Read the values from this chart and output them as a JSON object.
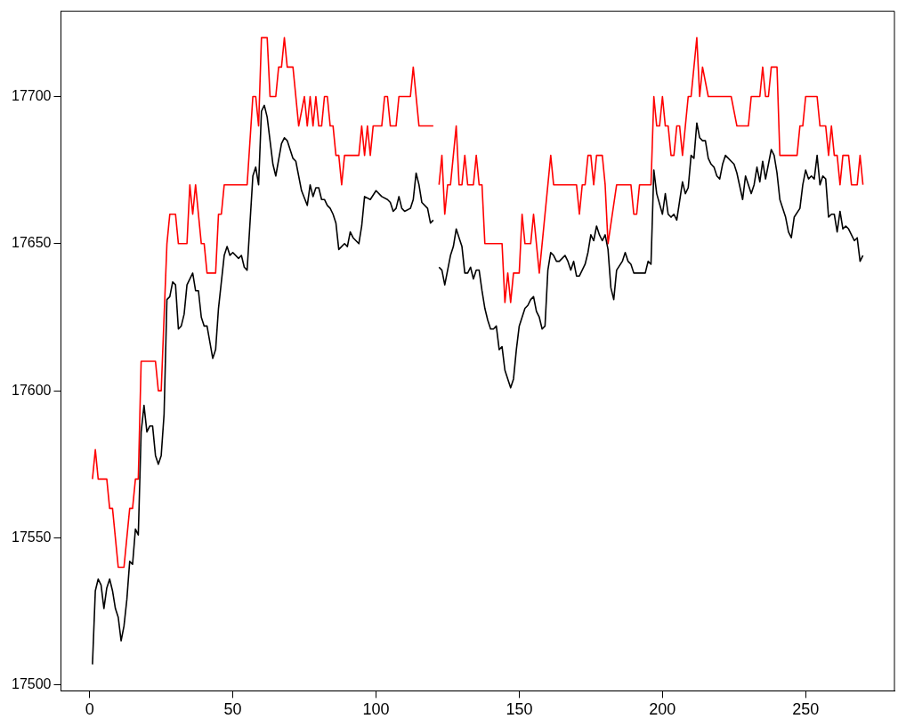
{
  "chart_data": {
    "type": "line",
    "marker": "none",
    "line_style": "solid",
    "xlim": [
      -10,
      281
    ],
    "xticks": [
      0,
      50,
      100,
      150,
      200,
      250
    ],
    "ylim": [
      17498,
      17729
    ],
    "yticks": [
      17500,
      17550,
      17600,
      17650,
      17700
    ],
    "series": [
      {
        "color": "#000000",
        "x": [
          1,
          2,
          3,
          4,
          5,
          6,
          7,
          8,
          9,
          10,
          11,
          12,
          13,
          14,
          15,
          16,
          17,
          18,
          19,
          20,
          21,
          22,
          23,
          24,
          25,
          26,
          27,
          28,
          29,
          30,
          31,
          32,
          33,
          34,
          36,
          37,
          38,
          39,
          40,
          41,
          43,
          44,
          45,
          47,
          48,
          49,
          50,
          52,
          53,
          54,
          55,
          57,
          58,
          59,
          60,
          61,
          62,
          64,
          65,
          67,
          68,
          69,
          71,
          72,
          74,
          76,
          77,
          78,
          79,
          80,
          81,
          82,
          83,
          84,
          85,
          86,
          87,
          89,
          90,
          91,
          92,
          93,
          94,
          95,
          96,
          98,
          100,
          102,
          104,
          105,
          106,
          107,
          108,
          109,
          110,
          112,
          113,
          114,
          115,
          116,
          118,
          119,
          120,
          121,
          122,
          123,
          124,
          125,
          126,
          127,
          128,
          129,
          130,
          131,
          132,
          133,
          134,
          135,
          136,
          137,
          138,
          139,
          140,
          141,
          142,
          143,
          144,
          145,
          146,
          147,
          148,
          149,
          150,
          151,
          152,
          153,
          154,
          155,
          156,
          157,
          158,
          159,
          160,
          161,
          162,
          163,
          164,
          166,
          167,
          168,
          169,
          170,
          171,
          173,
          174,
          175,
          176,
          177,
          178,
          179,
          180,
          181,
          182,
          183,
          184,
          186,
          187,
          188,
          189,
          190,
          192,
          194,
          195,
          196,
          197,
          198,
          200,
          201,
          202,
          203,
          204,
          205,
          207,
          208,
          209,
          210,
          211,
          212,
          213,
          214,
          215,
          216,
          217,
          218,
          219,
          220,
          221,
          222,
          223,
          224,
          225,
          226,
          228,
          229,
          231,
          232,
          233,
          234,
          235,
          236,
          238,
          239,
          240,
          241,
          243,
          244,
          245,
          246,
          248,
          249,
          250,
          251,
          252,
          253,
          254,
          255,
          256,
          257,
          258,
          259,
          260,
          261,
          262,
          263,
          264,
          265,
          267,
          268,
          269,
          270
        ],
        "values": [
          17507,
          17532,
          17536,
          17534,
          17526,
          17533,
          17536,
          17532,
          17526,
          17523,
          17515,
          17520,
          17529,
          17542,
          17541,
          17553,
          17551,
          17586,
          17595,
          17586,
          17588,
          17588,
          17578,
          17575,
          17578,
          17592,
          17631,
          17632,
          17637,
          17636,
          17621,
          17622,
          17626,
          17636,
          17640,
          17634,
          17634,
          17625,
          17622,
          17622,
          17611,
          17614,
          17628,
          17646,
          17649,
          17646,
          17647,
          17645,
          17646,
          17642,
          17641,
          17673,
          17676,
          17670,
          17695,
          17697,
          17693,
          17677,
          17673,
          17684,
          17686,
          17685,
          17679,
          17678,
          17668,
          17663,
          17670,
          17666,
          17669,
          17669,
          17665,
          17665,
          17663,
          17662,
          17660,
          17657,
          17648,
          17650,
          17649,
          17654,
          17652,
          17651,
          17650,
          17656,
          17666,
          17665,
          17668,
          17666,
          17665,
          17664,
          17661,
          17662,
          17666,
          17662,
          17661,
          17662,
          17665,
          17674,
          17670,
          17664,
          17662,
          17657,
          17658,
          null,
          17642,
          17641,
          17636,
          17641,
          17646,
          17649,
          17655,
          17652,
          17649,
          17640,
          17640,
          17642,
          17638,
          17641,
          17641,
          17634,
          17628,
          17624,
          17621,
          17621,
          17622,
          17614,
          17615,
          17607,
          17604,
          17601,
          17604,
          17614,
          17622,
          17625,
          17628,
          17629,
          17631,
          17632,
          17627,
          17625,
          17621,
          17622,
          17641,
          17647,
          17646,
          17644,
          17644,
          17646,
          17644,
          17641,
          17644,
          17639,
          17639,
          17643,
          17647,
          17653,
          17651,
          17656,
          17653,
          17651,
          17653,
          17648,
          17635,
          17631,
          17641,
          17644,
          17647,
          17644,
          17643,
          17640,
          17640,
          17640,
          17644,
          17643,
          17675,
          17667,
          17660,
          17667,
          17660,
          17659,
          17660,
          17658,
          17671,
          17667,
          17669,
          17680,
          17679,
          17691,
          17686,
          17685,
          17685,
          17679,
          17677,
          17676,
          17673,
          17672,
          17677,
          17680,
          17679,
          17678,
          17677,
          17674,
          17665,
          17673,
          17667,
          17670,
          17676,
          17671,
          17678,
          17672,
          17682,
          17680,
          17674,
          17665,
          17659,
          17654,
          17652,
          17659,
          17662,
          17670,
          17675,
          17672,
          17673,
          17672,
          17680,
          17670,
          17673,
          17672,
          17659,
          17660,
          17660,
          17654,
          17661,
          17655,
          17656,
          17655,
          17651,
          17652,
          17644,
          17646
        ]
      },
      {
        "color": "#ff0000",
        "x": [
          1,
          2,
          3,
          6,
          7,
          8,
          10,
          12,
          14,
          15,
          16,
          17,
          18,
          23,
          24,
          25,
          27,
          28,
          30,
          31,
          34,
          35,
          36,
          37,
          39,
          40,
          41,
          44,
          45,
          46,
          47,
          55,
          57,
          58,
          59,
          60,
          62,
          63,
          65,
          66,
          67,
          68,
          69,
          71,
          73,
          75,
          76,
          77,
          78,
          79,
          80,
          81,
          82,
          83,
          84,
          85,
          86,
          87,
          88,
          89,
          94,
          95,
          96,
          97,
          98,
          99,
          102,
          103,
          104,
          105,
          107,
          108,
          112,
          113,
          115,
          120,
          121,
          122,
          123,
          124,
          125,
          126,
          128,
          129,
          130,
          131,
          132,
          134,
          135,
          136,
          137,
          138,
          144,
          145,
          146,
          147,
          148,
          150,
          151,
          152,
          154,
          155,
          157,
          161,
          162,
          170,
          171,
          172,
          173,
          174,
          175,
          176,
          177,
          179,
          180,
          181,
          184,
          189,
          190,
          191,
          192,
          196,
          197,
          198,
          199,
          200,
          201,
          202,
          203,
          204,
          205,
          206,
          207,
          209,
          210,
          211,
          212,
          213,
          214,
          216,
          224,
          226,
          230,
          231,
          234,
          235,
          236,
          237,
          238,
          240,
          241,
          247,
          248,
          249,
          250,
          254,
          255,
          257,
          258,
          259,
          260,
          261,
          262,
          263,
          265,
          266,
          268,
          269,
          270
        ],
        "values": [
          17570,
          17580,
          17570,
          17570,
          17560,
          17560,
          17540,
          17540,
          17560,
          17560,
          17570,
          17570,
          17610,
          17610,
          17600,
          17600,
          17650,
          17660,
          17660,
          17650,
          17650,
          17670,
          17660,
          17670,
          17650,
          17650,
          17640,
          17640,
          17660,
          17660,
          17670,
          17670,
          17700,
          17700,
          17690,
          17720,
          17720,
          17700,
          17700,
          17710,
          17710,
          17720,
          17710,
          17710,
          17690,
          17700,
          17690,
          17700,
          17690,
          17700,
          17690,
          17690,
          17700,
          17700,
          17690,
          17690,
          17680,
          17680,
          17670,
          17680,
          17680,
          17690,
          17680,
          17690,
          17680,
          17690,
          17690,
          17700,
          17700,
          17690,
          17690,
          17700,
          17700,
          17710,
          17690,
          17690,
          null,
          17670,
          17680,
          17660,
          17670,
          17670,
          17690,
          17670,
          17670,
          17680,
          17670,
          17670,
          17680,
          17670,
          17670,
          17650,
          17650,
          17630,
          17640,
          17630,
          17640,
          17640,
          17660,
          17650,
          17650,
          17660,
          17640,
          17680,
          17670,
          17670,
          17660,
          17670,
          17670,
          17680,
          17680,
          17670,
          17680,
          17680,
          17670,
          17650,
          17670,
          17670,
          17660,
          17660,
          17670,
          17670,
          17700,
          17690,
          17690,
          17700,
          17690,
          17690,
          17680,
          17680,
          17690,
          17690,
          17680,
          17700,
          17700,
          17710,
          17720,
          17700,
          17710,
          17700,
          17700,
          17690,
          17690,
          17700,
          17700,
          17710,
          17700,
          17700,
          17710,
          17710,
          17680,
          17680,
          17690,
          17690,
          17700,
          17700,
          17690,
          17690,
          17680,
          17690,
          17680,
          17680,
          17670,
          17680,
          17680,
          17670,
          17670,
          17680,
          17670
        ]
      }
    ]
  }
}
